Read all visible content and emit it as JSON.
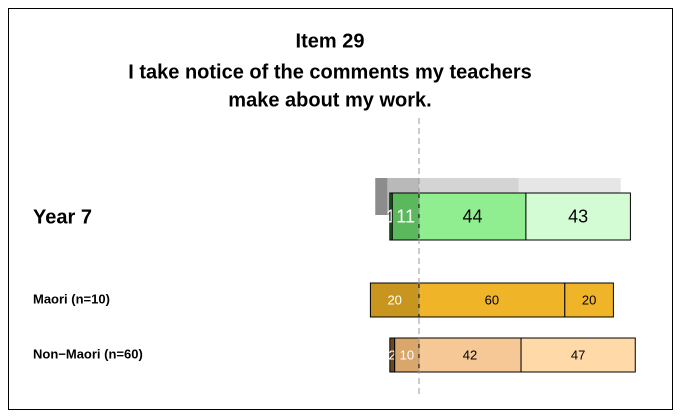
{
  "chart_data": {
    "type": "diverging_bar",
    "title": [
      "Item 29",
      "I take notice of the comments my teachers",
      "make about my work."
    ],
    "reference": {
      "values": [
        5,
        13,
        41,
        42
      ],
      "colors": [
        "#8c8c8c",
        "#b9b9b9",
        "#d4d4d4",
        "#e6e6e6"
      ],
      "negative": 2
    },
    "rows": [
      {
        "name": "Year 7",
        "values": [
          1,
          11,
          44,
          43
        ],
        "colors": [
          "#1f6f2a",
          "#5cb85c",
          "#90ee90",
          "#d4fcd4"
        ],
        "negative": 2
      },
      {
        "name": "Maori (n=10)",
        "values": [
          20,
          60,
          20
        ],
        "colors": [
          "#c8961e",
          "#f0b429",
          "#f0b429"
        ],
        "negative": 1
      },
      {
        "name": "Non−Maori (n=60)",
        "values": [
          2,
          10,
          42,
          47
        ],
        "colors": [
          "#6b4a1e",
          "#d9a66b",
          "#f5c896",
          "#ffd9a8"
        ],
        "negative": 2
      }
    ]
  }
}
